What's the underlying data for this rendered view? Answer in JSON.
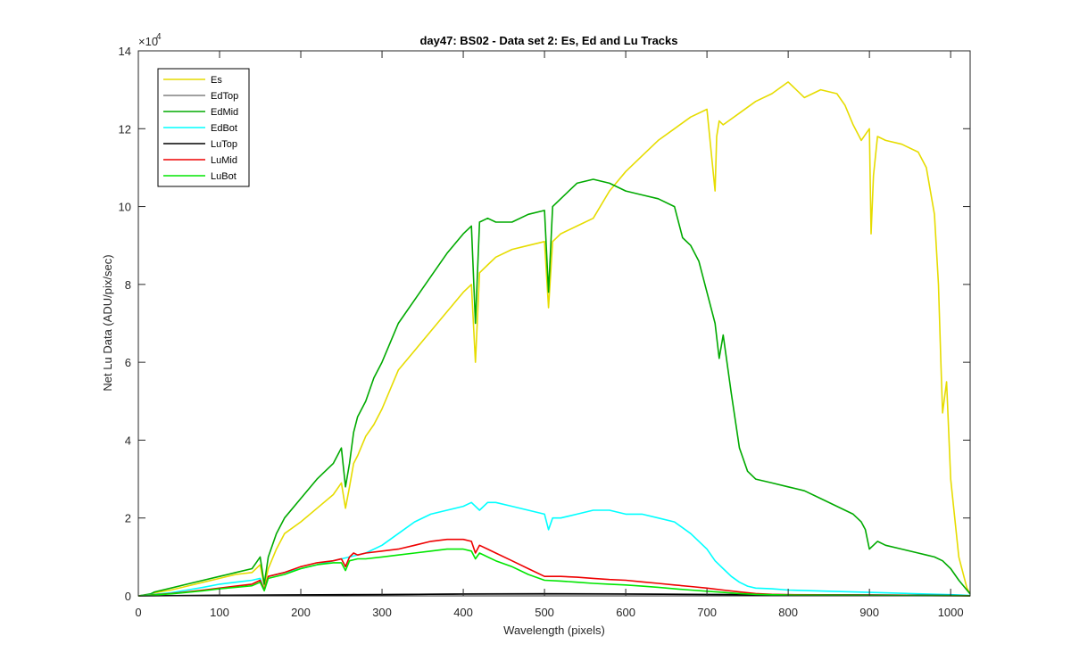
{
  "chart_data": {
    "type": "line",
    "title": "day47: BS02 - Data set 2: Es, Ed and Lu Tracks",
    "xlabel": "Wavelength (pixels)",
    "ylabel": "Net Lu Data (ADU/pix/sec)",
    "xlim": [
      0,
      1024
    ],
    "ylim": [
      0,
      140000
    ],
    "xticks": [
      0,
      100,
      200,
      300,
      400,
      500,
      600,
      700,
      800,
      900,
      1000
    ],
    "xtick_labels": [
      "0",
      "100",
      "200",
      "300",
      "400",
      "500",
      "600",
      "700",
      "800",
      "900",
      "1000"
    ],
    "yticks": [
      0,
      20000,
      40000,
      60000,
      80000,
      100000,
      120000,
      140000
    ],
    "ytick_labels": [
      "0",
      "2",
      "4",
      "6",
      "8",
      "10",
      "12",
      "14"
    ],
    "y_exponent_base": "×10",
    "y_exponent_power": "4",
    "legend_position": "top-left",
    "series": [
      {
        "name": "Es",
        "color": "#e6dc00",
        "x": [
          0,
          15,
          20,
          40,
          60,
          80,
          100,
          120,
          140,
          150,
          155,
          160,
          170,
          180,
          200,
          220,
          240,
          250,
          255,
          260,
          265,
          270,
          280,
          290,
          300,
          320,
          340,
          360,
          380,
          400,
          410,
          415,
          420,
          430,
          440,
          460,
          480,
          500,
          505,
          510,
          520,
          540,
          560,
          580,
          600,
          620,
          640,
          660,
          680,
          700,
          710,
          712,
          715,
          720,
          740,
          760,
          780,
          800,
          820,
          840,
          860,
          870,
          880,
          890,
          900,
          902,
          905,
          910,
          920,
          940,
          960,
          970,
          980,
          985,
          988,
          990,
          995,
          1000,
          1010,
          1020,
          1024
        ],
        "y": [
          0,
          400,
          800,
          1500,
          2500,
          3500,
          4500,
          5500,
          6000,
          8000,
          2500,
          7000,
          12000,
          16000,
          19000,
          22500,
          26000,
          29000,
          22500,
          28000,
          34000,
          36000,
          41000,
          44000,
          48000,
          58000,
          63000,
          68000,
          73000,
          78000,
          80000,
          60000,
          83000,
          85000,
          87000,
          89000,
          90000,
          91000,
          74000,
          91000,
          93000,
          95000,
          97000,
          104000,
          109000,
          113000,
          117000,
          120000,
          123000,
          125000,
          104000,
          118000,
          122000,
          121000,
          124000,
          127000,
          129000,
          132000,
          128000,
          130000,
          129000,
          126000,
          121000,
          117000,
          120000,
          93000,
          108000,
          118000,
          117000,
          116000,
          114000,
          110000,
          98000,
          80000,
          60000,
          47000,
          55000,
          30000,
          10000,
          2000,
          500
        ]
      },
      {
        "name": "EdTop",
        "color": "#808080",
        "x": [
          0,
          100,
          200,
          300,
          400,
          500,
          600,
          700,
          800,
          900,
          1000,
          1024
        ],
        "y": [
          0,
          100,
          200,
          300,
          500,
          600,
          500,
          400,
          300,
          200,
          100,
          50
        ]
      },
      {
        "name": "EdMid",
        "color": "#00aa00",
        "x": [
          0,
          15,
          20,
          40,
          60,
          80,
          100,
          120,
          140,
          150,
          155,
          160,
          170,
          180,
          200,
          220,
          240,
          250,
          255,
          260,
          265,
          270,
          280,
          290,
          300,
          320,
          340,
          360,
          380,
          400,
          410,
          415,
          420,
          430,
          440,
          460,
          480,
          500,
          505,
          510,
          520,
          530,
          540,
          560,
          580,
          600,
          620,
          640,
          660,
          670,
          680,
          690,
          700,
          710,
          715,
          720,
          730,
          740,
          750,
          760,
          780,
          800,
          820,
          840,
          860,
          880,
          890,
          895,
          900,
          910,
          920,
          940,
          960,
          970,
          980,
          990,
          1000,
          1010,
          1020,
          1024
        ],
        "y": [
          0,
          500,
          1000,
          2000,
          3000,
          4000,
          5000,
          6000,
          7000,
          10000,
          3000,
          10000,
          16000,
          20000,
          25000,
          30000,
          34000,
          38000,
          28000,
          34000,
          42000,
          46000,
          50000,
          56000,
          60000,
          70000,
          76000,
          82000,
          88000,
          93000,
          95000,
          70000,
          96000,
          97000,
          96000,
          96000,
          98000,
          99000,
          78000,
          100000,
          102000,
          104000,
          106000,
          107000,
          106000,
          104000,
          103000,
          102000,
          100000,
          92000,
          90000,
          86000,
          78000,
          70000,
          61000,
          67000,
          52000,
          38000,
          32000,
          30000,
          29000,
          28000,
          27000,
          25000,
          23000,
          21000,
          19000,
          17000,
          12000,
          14000,
          13000,
          12000,
          11000,
          10500,
          10000,
          9000,
          7000,
          4000,
          1500,
          500
        ]
      },
      {
        "name": "EdBot",
        "color": "#00ffff",
        "x": [
          0,
          20,
          40,
          60,
          80,
          100,
          120,
          140,
          150,
          155,
          160,
          180,
          200,
          220,
          240,
          260,
          280,
          300,
          320,
          340,
          360,
          380,
          400,
          410,
          420,
          430,
          440,
          460,
          480,
          500,
          505,
          510,
          520,
          540,
          560,
          580,
          600,
          620,
          640,
          660,
          680,
          700,
          710,
          720,
          730,
          740,
          750,
          760,
          780,
          800,
          850,
          900,
          950,
          1000,
          1024
        ],
        "y": [
          0,
          400,
          800,
          1500,
          2200,
          3000,
          3500,
          4000,
          4500,
          1500,
          5000,
          6000,
          7000,
          8000,
          9000,
          10000,
          11000,
          13000,
          16000,
          19000,
          21000,
          22000,
          23000,
          24000,
          22000,
          24000,
          24000,
          23000,
          22000,
          21000,
          17000,
          20000,
          20000,
          21000,
          22000,
          22000,
          21000,
          21000,
          20000,
          19000,
          16000,
          12000,
          9000,
          7000,
          5000,
          3500,
          2500,
          2000,
          1800,
          1500,
          1200,
          900,
          600,
          300,
          100
        ]
      },
      {
        "name": "LuTop",
        "color": "#000000",
        "x": [
          0,
          100,
          200,
          300,
          400,
          500,
          600,
          700,
          800,
          900,
          1000,
          1024
        ],
        "y": [
          0,
          150,
          250,
          350,
          450,
          500,
          450,
          350,
          250,
          200,
          100,
          50
        ]
      },
      {
        "name": "LuMid",
        "color": "#ee0000",
        "x": [
          0,
          20,
          40,
          60,
          80,
          100,
          120,
          140,
          150,
          155,
          160,
          180,
          200,
          220,
          240,
          250,
          255,
          260,
          265,
          270,
          280,
          300,
          320,
          340,
          360,
          380,
          400,
          410,
          415,
          420,
          430,
          440,
          460,
          480,
          500,
          520,
          540,
          560,
          580,
          600,
          620,
          640,
          660,
          680,
          700,
          720,
          740,
          760,
          780,
          800,
          850,
          900,
          950,
          1000,
          1024
        ],
        "y": [
          0,
          300,
          600,
          1000,
          1500,
          2000,
          2500,
          3000,
          4000,
          1500,
          5000,
          6000,
          7500,
          8500,
          9000,
          9500,
          7500,
          10000,
          11000,
          10500,
          11000,
          11500,
          12000,
          13000,
          14000,
          14500,
          14500,
          14000,
          11000,
          13000,
          12000,
          11000,
          9000,
          7000,
          5000,
          5000,
          4800,
          4500,
          4200,
          4000,
          3600,
          3200,
          2800,
          2400,
          2000,
          1500,
          1000,
          600,
          400,
          300,
          200,
          150,
          100,
          50,
          20
        ]
      },
      {
        "name": "LuBot",
        "color": "#00e600",
        "x": [
          0,
          20,
          40,
          60,
          80,
          100,
          120,
          140,
          150,
          155,
          160,
          180,
          200,
          220,
          240,
          250,
          255,
          260,
          270,
          280,
          300,
          320,
          340,
          360,
          380,
          400,
          410,
          415,
          420,
          430,
          440,
          460,
          480,
          500,
          520,
          540,
          560,
          580,
          600,
          620,
          640,
          660,
          680,
          700,
          720,
          740,
          760,
          780,
          800,
          850,
          900,
          950,
          1000,
          1024
        ],
        "y": [
          0,
          250,
          500,
          900,
          1300,
          1800,
          2200,
          2600,
          3500,
          1300,
          4500,
          5500,
          7000,
          8000,
          8500,
          8500,
          6500,
          9000,
          9500,
          9500,
          10000,
          10500,
          11000,
          11500,
          12000,
          12000,
          11500,
          9500,
          11000,
          10000,
          9000,
          7500,
          5500,
          4000,
          3800,
          3500,
          3200,
          3000,
          2800,
          2500,
          2200,
          1800,
          1500,
          1200,
          900,
          600,
          400,
          300,
          200,
          150,
          100,
          80,
          50,
          20
        ]
      }
    ]
  }
}
